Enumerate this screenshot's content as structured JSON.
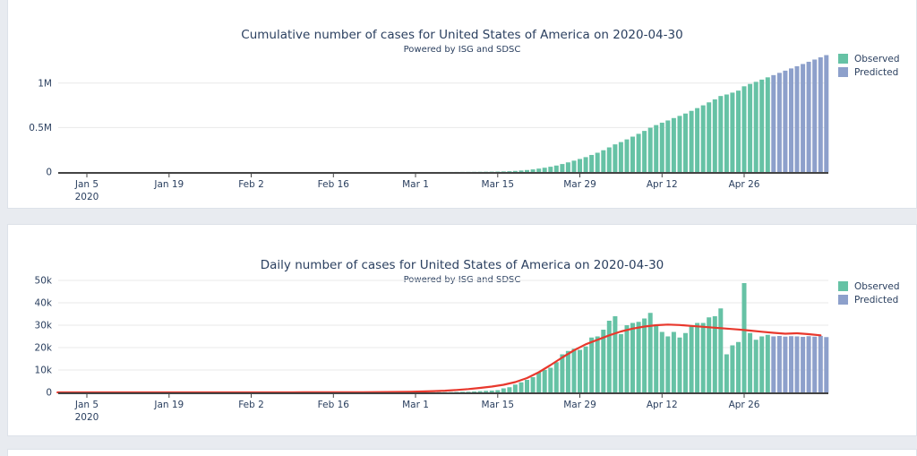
{
  "page": {
    "background": "#e8ebf0",
    "card_background": "#ffffff",
    "card_border": "#dde2e9"
  },
  "colors": {
    "observed": "#66c2a5",
    "predicted": "#8da0cb",
    "fit_line": "#e8382d",
    "title_text": "#2a3f5f",
    "tick_text": "#2a3f5f",
    "axis_line": "#444444",
    "gridline": "#e9e9e9"
  },
  "legend": {
    "items": [
      {
        "id": "observed",
        "label": "Observed"
      },
      {
        "id": "predicted",
        "label": "Predicted"
      }
    ]
  },
  "chart_data": [
    {
      "id": "cumulative",
      "type": "bar",
      "title": "Cumulative number of cases for United States of America on 2020-04-30",
      "subtitle": "Powered by ISG and SDSC",
      "xlabel": "",
      "ylabel": "",
      "ylim": [
        0,
        1330000
      ],
      "grid": true,
      "legend_position": "top-right",
      "yticks": [
        {
          "label": "0",
          "value": 0
        },
        {
          "label": "0.5M",
          "value": 500000
        },
        {
          "label": "1M",
          "value": 1000000
        }
      ],
      "xticks": [
        {
          "label": "Jan 5",
          "sublabel": "2020",
          "date": "2020-01-05"
        },
        {
          "label": "Jan 19",
          "date": "2020-01-19"
        },
        {
          "label": "Feb 2",
          "date": "2020-02-02"
        },
        {
          "label": "Feb 16",
          "date": "2020-02-16"
        },
        {
          "label": "Mar 1",
          "date": "2020-03-01"
        },
        {
          "label": "Mar 15",
          "date": "2020-03-15"
        },
        {
          "label": "Mar 29",
          "date": "2020-03-29"
        },
        {
          "label": "Apr 12",
          "date": "2020-04-12"
        },
        {
          "label": "Apr 26",
          "date": "2020-04-26"
        }
      ],
      "series": [
        {
          "name": "Observed",
          "color_key": "observed",
          "start_date": "2020-03-01",
          "step_days": 1,
          "values": [
            74,
            99,
            134,
            194,
            294,
            404,
            534,
            734,
            1024,
            1334,
            1734,
            2294,
            2994,
            3794,
            4794,
            6594,
            8894,
            12394,
            16894,
            22494,
            29294,
            38294,
            48294,
            59294,
            72794,
            89794,
            108294,
            127794,
            146794,
            167294,
            191794,
            216794,
            244794,
            276794,
            310794,
            336794,
            366794,
            397794,
            429294,
            462294,
            497794,
            527794,
            554794,
            579794,
            606794,
            631294,
            657794,
            687794,
            718794,
            749794,
            783294,
            817294,
            854794,
            871794,
            892794,
            915294,
            964094,
            990594,
            1014094,
            1039094,
            1064794
          ]
        },
        {
          "name": "Predicted",
          "color_key": "predicted",
          "start_date": "2020-05-01",
          "step_days": 1,
          "values": [
            1089794,
            1114994,
            1139894,
            1164994,
            1189994,
            1214794,
            1239894,
            1264794,
            1289994,
            1314694
          ]
        }
      ]
    },
    {
      "id": "daily",
      "type": "bar",
      "title": "Daily number of cases for United States of America on 2020-04-30",
      "subtitle": "Powered by ISG and SDSC",
      "xlabel": "",
      "ylabel": "",
      "ylim": [
        0,
        50800
      ],
      "grid": true,
      "legend_position": "top-right",
      "yticks": [
        {
          "label": "0",
          "value": 0
        },
        {
          "label": "10k",
          "value": 10000
        },
        {
          "label": "20k",
          "value": 20000
        },
        {
          "label": "30k",
          "value": 30000
        },
        {
          "label": "40k",
          "value": 40000
        },
        {
          "label": "50k",
          "value": 50000
        }
      ],
      "xticks": [
        {
          "label": "Jan 5",
          "sublabel": "2020",
          "date": "2020-01-05"
        },
        {
          "label": "Jan 19",
          "date": "2020-01-19"
        },
        {
          "label": "Feb 2",
          "date": "2020-02-02"
        },
        {
          "label": "Feb 16",
          "date": "2020-02-16"
        },
        {
          "label": "Mar 1",
          "date": "2020-03-01"
        },
        {
          "label": "Mar 15",
          "date": "2020-03-15"
        },
        {
          "label": "Mar 29",
          "date": "2020-03-29"
        },
        {
          "label": "Apr 12",
          "date": "2020-04-12"
        },
        {
          "label": "Apr 26",
          "date": "2020-04-26"
        }
      ],
      "series": [
        {
          "name": "Observed",
          "color_key": "observed",
          "start_date": "2020-03-01",
          "step_days": 1,
          "values": [
            20,
            25,
            35,
            60,
            100,
            110,
            130,
            200,
            290,
            310,
            400,
            560,
            700,
            800,
            1000,
            1800,
            2300,
            3500,
            4500,
            5600,
            6800,
            9000,
            10000,
            11000,
            13500,
            17000,
            18500,
            19500,
            19000,
            20500,
            24500,
            25000,
            28000,
            32000,
            34000,
            26000,
            30000,
            31000,
            31500,
            33000,
            35500,
            30000,
            27000,
            25000,
            27000,
            24500,
            26500,
            30000,
            31000,
            31000,
            33500,
            34000,
            37500,
            17000,
            21000,
            22500,
            48800,
            26500,
            23500,
            25000,
            25700
          ]
        },
        {
          "name": "Predicted",
          "color_key": "predicted",
          "start_date": "2020-05-01",
          "step_days": 1,
          "values": [
            25000,
            25200,
            24900,
            25100,
            25000,
            24800,
            25100,
            24900,
            25200,
            24700
          ]
        }
      ],
      "line_series": {
        "name": "Fitted",
        "color_key": "fit_line",
        "start_date": "2019-12-31",
        "step_days": 2,
        "values": [
          0,
          0,
          0,
          0,
          0,
          0,
          0,
          0,
          0,
          0,
          0,
          0,
          0,
          0,
          0,
          0,
          5,
          5,
          10,
          10,
          15,
          20,
          25,
          30,
          45,
          60,
          80,
          110,
          150,
          210,
          290,
          400,
          560,
          780,
          1080,
          1500,
          2000,
          2600,
          3400,
          4600,
          6400,
          9000,
          12200,
          15600,
          18800,
          21500,
          23500,
          25500,
          27200,
          28500,
          29400,
          30000,
          30300,
          30100,
          29700,
          29300,
          28900,
          28500,
          28100,
          27600,
          27100,
          26600,
          26200,
          26400,
          26000,
          25500
        ]
      }
    }
  ]
}
